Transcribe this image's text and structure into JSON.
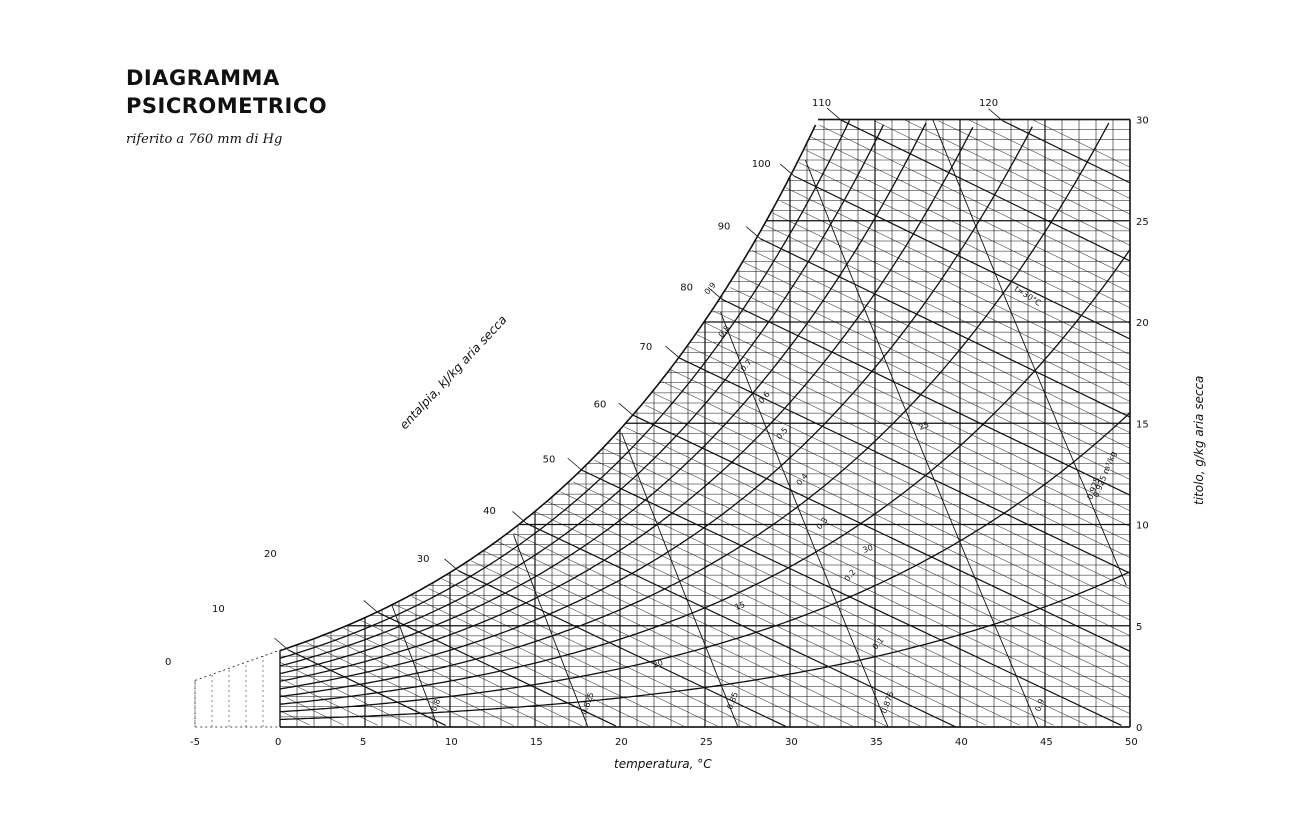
{
  "title": {
    "line1": "DIAGRAMMA",
    "line2": "PSICROMETRICO",
    "subtitle": "riferito a 760 mm di Hg"
  },
  "chart_data": {
    "type": "psychrometric",
    "x": {
      "label": "temperatura, °C",
      "range": [
        -5,
        50
      ],
      "ticks": [
        -5,
        0,
        5,
        10,
        15,
        20,
        25,
        30,
        35,
        40,
        45,
        50
      ]
    },
    "y": {
      "label": "titolo, g/kg aria secca",
      "range": [
        0,
        30
      ],
      "ticks": [
        0,
        5,
        10,
        15,
        20,
        25,
        30
      ]
    },
    "enthalpy": {
      "label": "entalpia, kJ/kg aria secca",
      "ticks": [
        0,
        10,
        20,
        30,
        40,
        50,
        60,
        70,
        80,
        90,
        100,
        110,
        120
      ]
    },
    "relative_humidity_labels": [
      "0.9",
      "0.8",
      "0.7",
      "0.6",
      "0.5",
      "0.4",
      "0.3",
      "0.2",
      "0.1"
    ],
    "wet_bulb_labels": [
      "15",
      "20",
      "25",
      "30"
    ],
    "volume_labels": [
      "0.8",
      "0.825",
      "0.85",
      "0.875",
      "0.9",
      "0.925"
    ],
    "extra_labels": [
      "t=30°C",
      "0.925 m³/kg"
    ],
    "grid": true
  }
}
